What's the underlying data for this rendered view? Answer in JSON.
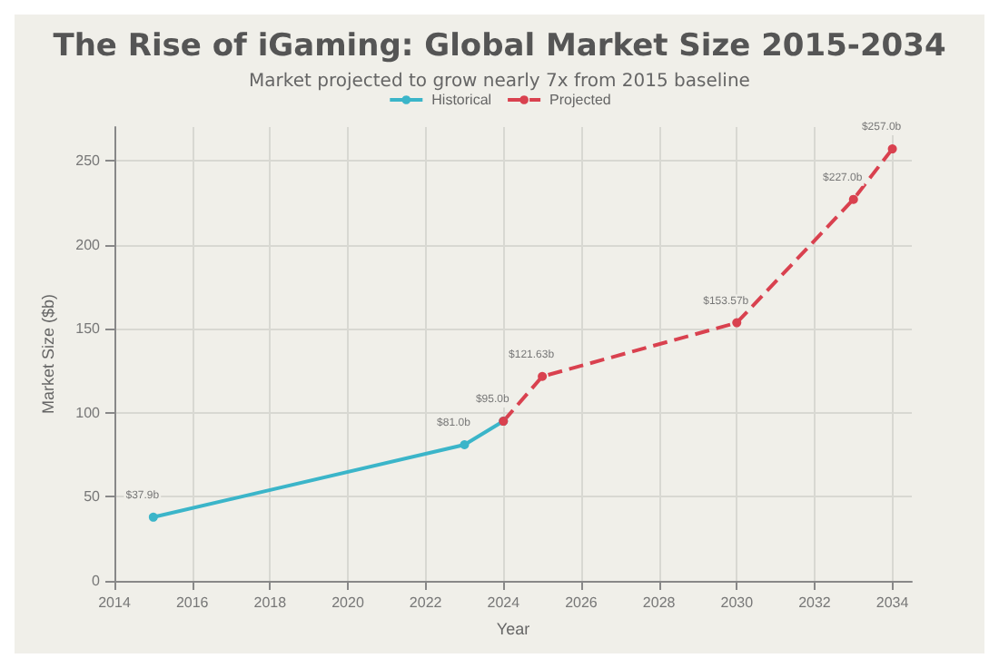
{
  "chart_data": {
    "type": "line",
    "title": "The Rise of iGaming: Global Market Size 2015-2034",
    "subtitle": "Market projected to grow nearly 7x from 2015 baseline",
    "xlabel": "Year",
    "ylabel": "Market Size ($b)",
    "series": [
      {
        "name": "Historical",
        "color": "#3bb5c9",
        "x": [
          2015,
          2023,
          2024
        ],
        "values": [
          37.9,
          81.0,
          95.0
        ],
        "value_labels": [
          "$37.9b",
          "$81.0b",
          "$95.0b"
        ],
        "line_style": "solid"
      },
      {
        "name": "Projected",
        "color": "#d9414f",
        "x": [
          2024,
          2025,
          2030,
          2033,
          2034
        ],
        "values": [
          95.0,
          121.63,
          153.57,
          227.0,
          257.0
        ],
        "value_labels": [
          null,
          "$121.63b",
          "$153.57b",
          "$227.0b",
          "$257.0b"
        ],
        "line_style": "dashed"
      }
    ],
    "xlim": [
      2014,
      2034.5
    ],
    "xticks": [
      2014,
      2016,
      2018,
      2020,
      2022,
      2024,
      2026,
      2028,
      2030,
      2032,
      2034
    ],
    "ylim": [
      0,
      270
    ],
    "yticks": [
      0,
      50,
      100,
      150,
      200,
      250
    ],
    "grid": true,
    "legend": "top",
    "marker": "circle"
  }
}
